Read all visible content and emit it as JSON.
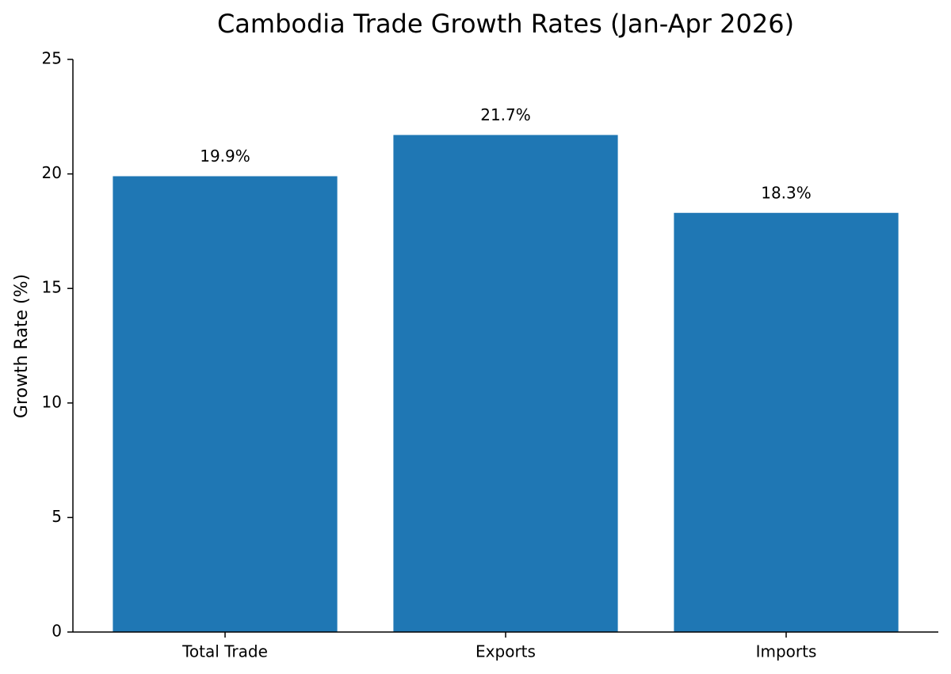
{
  "chart_data": {
    "type": "bar",
    "title": "Cambodia Trade Growth Rates (Jan-Apr 2026)",
    "y_label": "Growth Rate (%)",
    "categories": [
      "Total Trade",
      "Exports",
      "Imports"
    ],
    "values": [
      19.9,
      21.7,
      18.3
    ],
    "value_labels": [
      "19.9%",
      "21.7%",
      "18.3%"
    ],
    "color": "#1f77b4",
    "ylim": [
      0,
      25
    ],
    "yticks": [
      0,
      5,
      10,
      15,
      20,
      25
    ],
    "grid": false
  }
}
